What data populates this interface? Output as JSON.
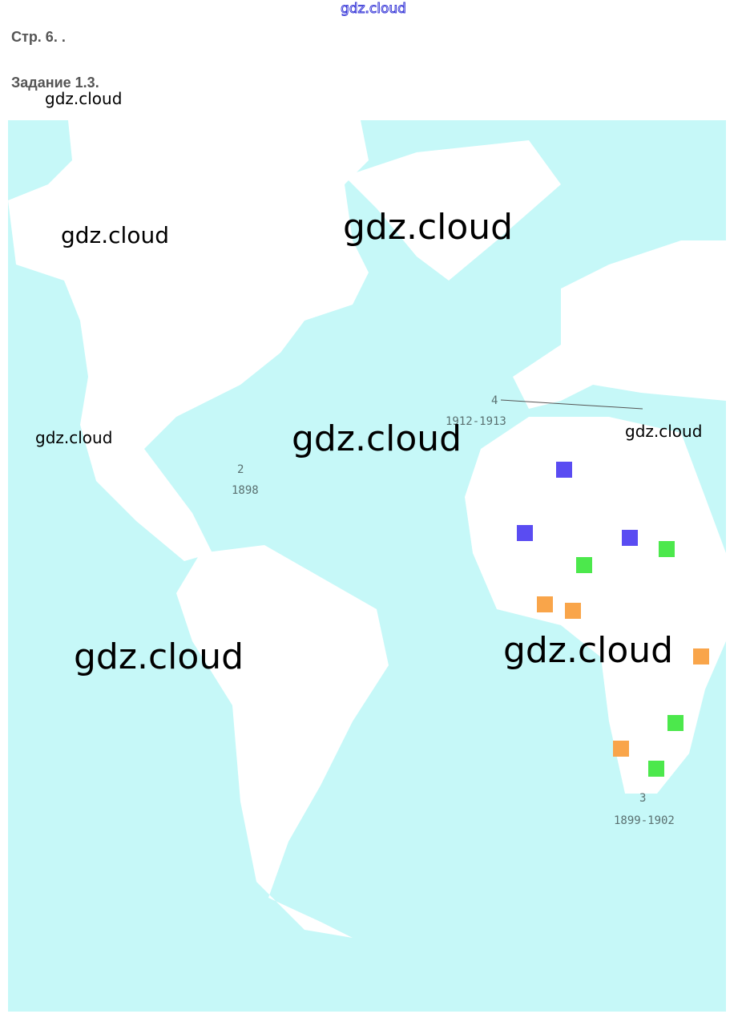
{
  "header": {
    "watermark_top": "gdz.cloud",
    "page_label": "Стр. 6. .",
    "task_label": "Задание 1.3."
  },
  "watermarks": [
    "gdz.cloud",
    "gdz.cloud",
    "gdz.cloud",
    "gdz.cloud",
    "gdz.cloud",
    "gdz.cloud",
    "gdz.cloud",
    "gdz.cloud"
  ],
  "map": {
    "colors": {
      "ocean": "#c6f8f8",
      "land": "#ffffff",
      "blue": "#5a4cf2",
      "green": "#4ce84c",
      "orange": "#f9a54a"
    },
    "labels": {
      "num2": "2",
      "year2": "1898",
      "num3": "3",
      "year3": "1899-1902",
      "num4": "4",
      "year4": "1912-1913"
    },
    "markers": [
      {
        "color": "blue"
      },
      {
        "color": "blue"
      },
      {
        "color": "blue"
      },
      {
        "color": "green"
      },
      {
        "color": "green"
      },
      {
        "color": "green"
      },
      {
        "color": "green"
      },
      {
        "color": "orange"
      },
      {
        "color": "orange"
      },
      {
        "color": "orange"
      },
      {
        "color": "orange"
      }
    ]
  }
}
